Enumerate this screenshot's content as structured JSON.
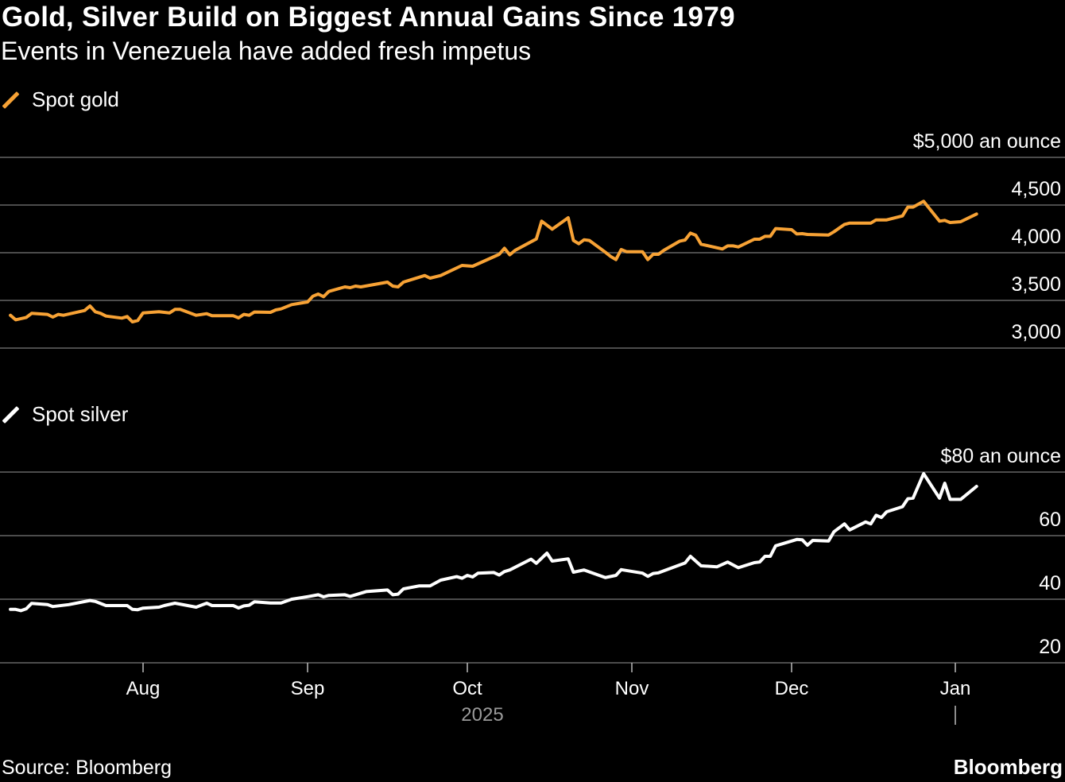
{
  "title": "Gold, Silver Build on Biggest Annual Gains Since 1979",
  "subtitle": "Events in Venezuela have added fresh impetus",
  "source": "Source: Bloomberg",
  "logo": "Bloomberg",
  "colors": {
    "background": "#000000",
    "gold": "#f7a235",
    "silver": "#ffffff",
    "grid": "#666666",
    "year_label": "#9a9a9a"
  },
  "chart_data": [
    {
      "type": "line",
      "legend": "Spot gold",
      "legend_icon": "slash-line-icon",
      "unit_label": "$5,000 an ounce",
      "ylim": [
        3000,
        5000
      ],
      "yticks": [
        3000,
        3500,
        4000,
        4500,
        5000
      ],
      "ytick_labels": [
        "3,000",
        "3,500",
        "4,000",
        "4,500",
        "$5,000 an ounce"
      ],
      "grid": true,
      "color": "#f7a235",
      "series": [
        {
          "name": "Spot gold",
          "points": [
            [
              "2025-07-07",
              3344
            ],
            [
              "2025-07-08",
              3297
            ],
            [
              "2025-07-10",
              3322
            ],
            [
              "2025-07-11",
              3364
            ],
            [
              "2025-07-14",
              3353
            ],
            [
              "2025-07-15",
              3325
            ],
            [
              "2025-07-16",
              3353
            ],
            [
              "2025-07-17",
              3344
            ],
            [
              "2025-07-21",
              3394
            ],
            [
              "2025-07-22",
              3442
            ],
            [
              "2025-07-23",
              3381
            ],
            [
              "2025-07-24",
              3364
            ],
            [
              "2025-07-25",
              3336
            ],
            [
              "2025-07-28",
              3314
            ],
            [
              "2025-07-29",
              3331
            ],
            [
              "2025-07-30",
              3275
            ],
            [
              "2025-07-31",
              3289
            ],
            [
              "2025-08-01",
              3369
            ],
            [
              "2025-08-04",
              3381
            ],
            [
              "2025-08-06",
              3369
            ],
            [
              "2025-08-07",
              3406
            ],
            [
              "2025-08-08",
              3406
            ],
            [
              "2025-08-11",
              3344
            ],
            [
              "2025-08-13",
              3361
            ],
            [
              "2025-08-14",
              3339
            ],
            [
              "2025-08-18",
              3339
            ],
            [
              "2025-08-19",
              3317
            ],
            [
              "2025-08-20",
              3353
            ],
            [
              "2025-08-21",
              3344
            ],
            [
              "2025-08-22",
              3378
            ],
            [
              "2025-08-25",
              3375
            ],
            [
              "2025-08-26",
              3400
            ],
            [
              "2025-08-27",
              3411
            ],
            [
              "2025-08-29",
              3456
            ],
            [
              "2025-09-01",
              3483
            ],
            [
              "2025-09-02",
              3544
            ],
            [
              "2025-09-03",
              3567
            ],
            [
              "2025-09-04",
              3539
            ],
            [
              "2025-09-05",
              3594
            ],
            [
              "2025-09-08",
              3642
            ],
            [
              "2025-09-09",
              3633
            ],
            [
              "2025-09-10",
              3650
            ],
            [
              "2025-09-11",
              3642
            ],
            [
              "2025-09-16",
              3692
            ],
            [
              "2025-09-17",
              3650
            ],
            [
              "2025-09-18",
              3642
            ],
            [
              "2025-09-19",
              3692
            ],
            [
              "2025-09-23",
              3761
            ],
            [
              "2025-09-24",
              3733
            ],
            [
              "2025-09-26",
              3761
            ],
            [
              "2025-09-30",
              3867
            ],
            [
              "2025-10-02",
              3858
            ],
            [
              "2025-10-07",
              3983
            ],
            [
              "2025-10-08",
              4047
            ],
            [
              "2025-10-09",
              3978
            ],
            [
              "2025-10-10",
              4025
            ],
            [
              "2025-10-14",
              4144
            ],
            [
              "2025-10-15",
              4331
            ],
            [
              "2025-10-17",
              4247
            ],
            [
              "2025-10-20",
              4367
            ],
            [
              "2025-10-21",
              4128
            ],
            [
              "2025-10-22",
              4094
            ],
            [
              "2025-10-23",
              4136
            ],
            [
              "2025-10-24",
              4128
            ],
            [
              "2025-10-27",
              4006
            ],
            [
              "2025-10-28",
              3961
            ],
            [
              "2025-10-29",
              3928
            ],
            [
              "2025-10-30",
              4033
            ],
            [
              "2025-10-31",
              4011
            ],
            [
              "2025-11-03",
              4011
            ],
            [
              "2025-11-04",
              3928
            ],
            [
              "2025-11-05",
              3983
            ],
            [
              "2025-11-06",
              3983
            ],
            [
              "2025-11-07",
              4025
            ],
            [
              "2025-11-10",
              4122
            ],
            [
              "2025-11-11",
              4133
            ],
            [
              "2025-11-12",
              4206
            ],
            [
              "2025-11-13",
              4183
            ],
            [
              "2025-11-14",
              4089
            ],
            [
              "2025-11-18",
              4039
            ],
            [
              "2025-11-19",
              4072
            ],
            [
              "2025-11-20",
              4072
            ],
            [
              "2025-11-21",
              4061
            ],
            [
              "2025-11-24",
              4142
            ],
            [
              "2025-11-25",
              4142
            ],
            [
              "2025-11-26",
              4172
            ],
            [
              "2025-11-27",
              4172
            ],
            [
              "2025-11-28",
              4253
            ],
            [
              "2025-12-01",
              4242
            ],
            [
              "2025-12-02",
              4197
            ],
            [
              "2025-12-03",
              4200
            ],
            [
              "2025-12-04",
              4192
            ],
            [
              "2025-12-08",
              4186
            ],
            [
              "2025-12-09",
              4219
            ],
            [
              "2025-12-11",
              4297
            ],
            [
              "2025-12-12",
              4311
            ],
            [
              "2025-12-16",
              4311
            ],
            [
              "2025-12-17",
              4344
            ],
            [
              "2025-12-19",
              4344
            ],
            [
              "2025-12-22",
              4386
            ],
            [
              "2025-12-23",
              4478
            ],
            [
              "2025-12-24",
              4478
            ],
            [
              "2025-12-26",
              4539
            ],
            [
              "2025-12-29",
              4331
            ],
            [
              "2025-12-30",
              4339
            ],
            [
              "2025-12-31",
              4317
            ],
            [
              "2026-01-02",
              4325
            ],
            [
              "2026-01-05",
              4406
            ]
          ]
        }
      ]
    },
    {
      "type": "line",
      "legend": "Spot silver",
      "legend_icon": "slash-line-icon",
      "unit_label": "$80 an ounce",
      "ylim": [
        20,
        80
      ],
      "yticks": [
        20,
        40,
        60,
        80
      ],
      "ytick_labels": [
        "20",
        "40",
        "60",
        "$80 an ounce"
      ],
      "grid": true,
      "color": "#ffffff",
      "xticks": [
        "2025-08-01",
        "2025-09-01",
        "2025-10-01",
        "2025-11-01",
        "2025-12-01",
        "2026-01-01"
      ],
      "xtick_labels": [
        "Aug",
        "Sep",
        "Oct",
        "Nov",
        "Dec",
        "Jan"
      ],
      "year_label": "2025",
      "series": [
        {
          "name": "Spot silver",
          "points": [
            [
              "2025-07-07",
              36.8
            ],
            [
              "2025-07-08",
              36.8
            ],
            [
              "2025-07-09",
              36.4
            ],
            [
              "2025-07-10",
              37.0
            ],
            [
              "2025-07-11",
              38.7
            ],
            [
              "2025-07-14",
              38.3
            ],
            [
              "2025-07-15",
              37.7
            ],
            [
              "2025-07-18",
              38.3
            ],
            [
              "2025-07-22",
              39.6
            ],
            [
              "2025-07-23",
              39.3
            ],
            [
              "2025-07-25",
              38.0
            ],
            [
              "2025-07-29",
              38.0
            ],
            [
              "2025-07-30",
              36.8
            ],
            [
              "2025-07-31",
              36.7
            ],
            [
              "2025-08-01",
              37.2
            ],
            [
              "2025-08-04",
              37.5
            ],
            [
              "2025-08-05",
              38.0
            ],
            [
              "2025-08-07",
              38.75
            ],
            [
              "2025-08-11",
              37.5
            ],
            [
              "2025-08-13",
              38.75
            ],
            [
              "2025-08-14",
              38.0
            ],
            [
              "2025-08-18",
              38.0
            ],
            [
              "2025-08-19",
              37.25
            ],
            [
              "2025-08-20",
              37.9
            ],
            [
              "2025-08-21",
              38.1
            ],
            [
              "2025-08-22",
              39.2
            ],
            [
              "2025-08-25",
              38.8
            ],
            [
              "2025-08-27",
              38.8
            ],
            [
              "2025-08-29",
              40.0
            ],
            [
              "2025-09-01",
              40.8
            ],
            [
              "2025-09-03",
              41.4
            ],
            [
              "2025-09-04",
              40.75
            ],
            [
              "2025-09-05",
              41.2
            ],
            [
              "2025-09-08",
              41.4
            ],
            [
              "2025-09-09",
              40.9
            ],
            [
              "2025-09-10",
              41.4
            ],
            [
              "2025-09-12",
              42.4
            ],
            [
              "2025-09-16",
              42.9
            ],
            [
              "2025-09-17",
              41.4
            ],
            [
              "2025-09-18",
              41.6
            ],
            [
              "2025-09-19",
              43.25
            ],
            [
              "2025-09-22",
              44.2
            ],
            [
              "2025-09-24",
              44.2
            ],
            [
              "2025-09-26",
              46.0
            ],
            [
              "2025-09-29",
              47.1
            ],
            [
              "2025-09-30",
              46.6
            ],
            [
              "2025-10-01",
              47.5
            ],
            [
              "2025-10-02",
              47.0
            ],
            [
              "2025-10-03",
              48.2
            ],
            [
              "2025-10-06",
              48.4
            ],
            [
              "2025-10-07",
              47.6
            ],
            [
              "2025-10-08",
              48.7
            ],
            [
              "2025-10-09",
              49.2
            ],
            [
              "2025-10-13",
              52.6
            ],
            [
              "2025-10-14",
              51.3
            ],
            [
              "2025-10-16",
              54.5
            ],
            [
              "2025-10-17",
              52.0
            ],
            [
              "2025-10-20",
              52.7
            ],
            [
              "2025-10-21",
              48.5
            ],
            [
              "2025-10-23",
              49.2
            ],
            [
              "2025-10-27",
              46.8
            ],
            [
              "2025-10-29",
              47.5
            ],
            [
              "2025-10-30",
              49.3
            ],
            [
              "2025-11-03",
              48.2
            ],
            [
              "2025-11-04",
              47.2
            ],
            [
              "2025-11-05",
              48.1
            ],
            [
              "2025-11-06",
              48.3
            ],
            [
              "2025-11-11",
              51.4
            ],
            [
              "2025-11-12",
              53.5
            ],
            [
              "2025-11-14",
              50.5
            ],
            [
              "2025-11-17",
              50.2
            ],
            [
              "2025-11-19",
              51.7
            ],
            [
              "2025-11-21",
              49.9
            ],
            [
              "2025-11-24",
              51.5
            ],
            [
              "2025-11-25",
              51.7
            ],
            [
              "2025-11-26",
              53.5
            ],
            [
              "2025-11-27",
              53.5
            ],
            [
              "2025-11-28",
              56.8
            ],
            [
              "2025-12-02",
              58.8
            ],
            [
              "2025-12-03",
              58.7
            ],
            [
              "2025-12-04",
              57.0
            ],
            [
              "2025-12-05",
              58.5
            ],
            [
              "2025-12-08",
              58.3
            ],
            [
              "2025-12-09",
              61.2
            ],
            [
              "2025-12-11",
              63.7
            ],
            [
              "2025-12-12",
              61.8
            ],
            [
              "2025-12-15",
              64.3
            ],
            [
              "2025-12-16",
              63.7
            ],
            [
              "2025-12-17",
              66.4
            ],
            [
              "2025-12-18",
              65.7
            ],
            [
              "2025-12-19",
              67.5
            ],
            [
              "2025-12-22",
              69.1
            ],
            [
              "2025-12-23",
              71.6
            ],
            [
              "2025-12-24",
              71.8
            ],
            [
              "2025-12-26",
              79.5
            ],
            [
              "2025-12-29",
              71.8
            ],
            [
              "2025-12-30",
              76.5
            ],
            [
              "2025-12-31",
              71.4
            ],
            [
              "2026-01-02",
              71.4
            ],
            [
              "2026-01-05",
              75.5
            ]
          ]
        }
      ]
    }
  ]
}
